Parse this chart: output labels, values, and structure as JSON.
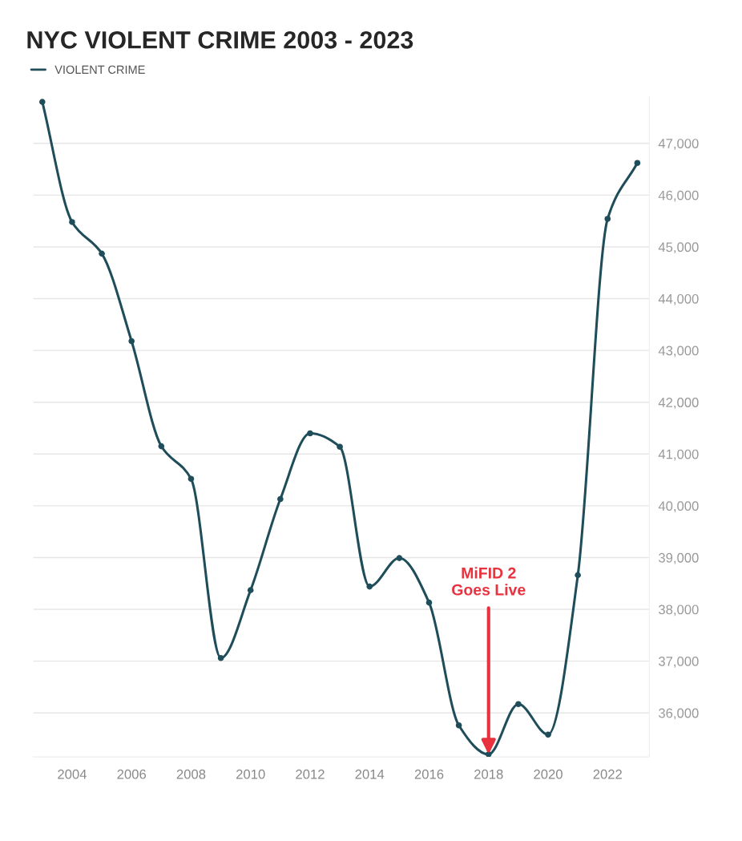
{
  "chart_data": {
    "type": "line",
    "title": "NYC VIOLENT CRIME 2003 - 2023",
    "x": [
      2003,
      2004,
      2005,
      2006,
      2007,
      2008,
      2009,
      2010,
      2011,
      2012,
      2013,
      2014,
      2015,
      2016,
      2017,
      2018,
      2019,
      2020,
      2021,
      2022,
      2023
    ],
    "series": [
      {
        "name": "VIOLENT CRIME",
        "color": "#1f4e5a",
        "values": [
          47800,
          45480,
          44870,
          43180,
          41150,
          40520,
          37060,
          38370,
          40130,
          41400,
          41140,
          38440,
          38990,
          38130,
          35760,
          35200,
          36170,
          35580,
          38660,
          45540,
          46620
        ]
      }
    ],
    "xlim": [
      2002.7,
      2023.4
    ],
    "xticks": [
      2004,
      2006,
      2008,
      2010,
      2012,
      2014,
      2016,
      2018,
      2020,
      2022
    ],
    "ylim": [
      35150,
      47900
    ],
    "yticks": [
      {
        "value": 36000,
        "label": "36,000"
      },
      {
        "value": 37000,
        "label": "37,000"
      },
      {
        "value": 38000,
        "label": "38,000"
      },
      {
        "value": 39000,
        "label": "39,000"
      },
      {
        "value": 40000,
        "label": "40,000"
      },
      {
        "value": 41000,
        "label": "41,000"
      },
      {
        "value": 42000,
        "label": "42,000"
      },
      {
        "value": 43000,
        "label": "43,000"
      },
      {
        "value": 44000,
        "label": "44,000"
      },
      {
        "value": 45000,
        "label": "45,000"
      },
      {
        "value": 46000,
        "label": "46,000"
      },
      {
        "value": 47000,
        "label": "47,000"
      }
    ],
    "annotations": [
      {
        "text": "MiFID 2\nGoes Live",
        "x": 2018,
        "y": 35200
      }
    ],
    "grid": "y",
    "legend": "top left",
    "marker": "circle",
    "line_style": "solid"
  }
}
